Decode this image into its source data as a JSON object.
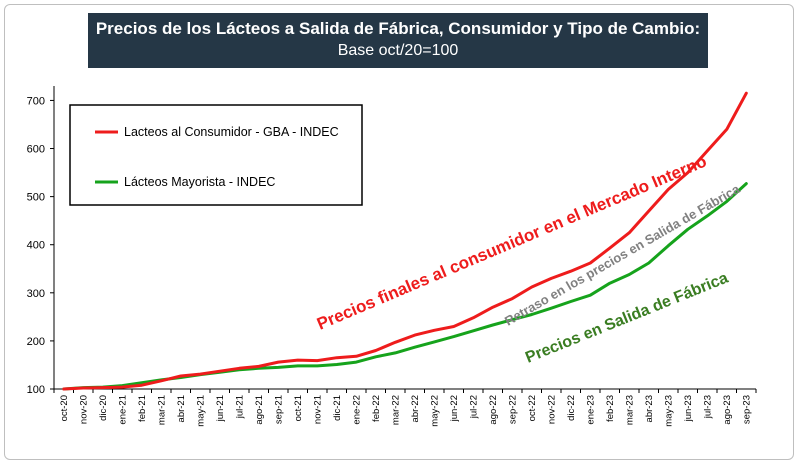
{
  "title": {
    "line1": "Precios de los Lácteos a Salida de Fábrica, Consumidor y Tipo de Cambio:",
    "line2": "Base oct/20=100"
  },
  "chart_data": {
    "type": "line",
    "title": "Precios de los Lácteos a Salida de Fábrica, Consumidor y Tipo de Cambio:",
    "subtitle": "Base oct/20=100",
    "xlabel": "",
    "ylabel": "",
    "ylim": [
      100,
      730
    ],
    "yticks": [
      100,
      200,
      300,
      400,
      500,
      600,
      700
    ],
    "grid": false,
    "legend_position": "top-left",
    "x": [
      "oct-20",
      "nov-20",
      "dic-20",
      "ene-21",
      "feb-21",
      "mar-21",
      "abr-21",
      "may-21",
      "jun-21",
      "jul-21",
      "ago-21",
      "sep-21",
      "oct-21",
      "nov-21",
      "dic-21",
      "ene-22",
      "feb-22",
      "mar-22",
      "abr-22",
      "may-22",
      "jun-22",
      "jul-22",
      "ago-22",
      "sep-22",
      "oct-22",
      "nov-22",
      "dic-22",
      "ene-23",
      "feb-23",
      "mar-23",
      "abr-23",
      "may-23",
      "jun-23",
      "jul-23",
      "ago-23",
      "sep-23"
    ],
    "series": [
      {
        "name": "Lacteos al Consumidor - GBA - INDEC",
        "color": "#ee1c1c",
        "values": [
          100,
          102,
          103,
          104,
          108,
          117,
          127,
          131,
          137,
          143,
          147,
          156,
          160,
          159,
          165,
          168,
          180,
          197,
          212,
          222,
          230,
          248,
          270,
          288,
          312,
          330,
          345,
          362,
          393,
          425,
          470,
          515,
          550,
          595,
          640,
          715
        ]
      },
      {
        "name": "Lácteos Mayorista - INDEC",
        "color": "#16a31c",
        "values": [
          100,
          103,
          104,
          107,
          113,
          119,
          124,
          130,
          135,
          140,
          143,
          145,
          148,
          148,
          151,
          156,
          167,
          175,
          187,
          198,
          209,
          221,
          233,
          244,
          255,
          268,
          282,
          295,
          320,
          338,
          362,
          398,
          432,
          460,
          490,
          527
        ]
      }
    ],
    "annotations": [
      {
        "text": "Precios finales al consumidor en el Mercado Interno",
        "color": "#ee1c1c"
      },
      {
        "text": "Retraso en los precios en Salida de Fábrica",
        "color": "#808080"
      },
      {
        "text": "Precios en Salida de Fábrica",
        "color": "#3a7d22"
      }
    ]
  }
}
